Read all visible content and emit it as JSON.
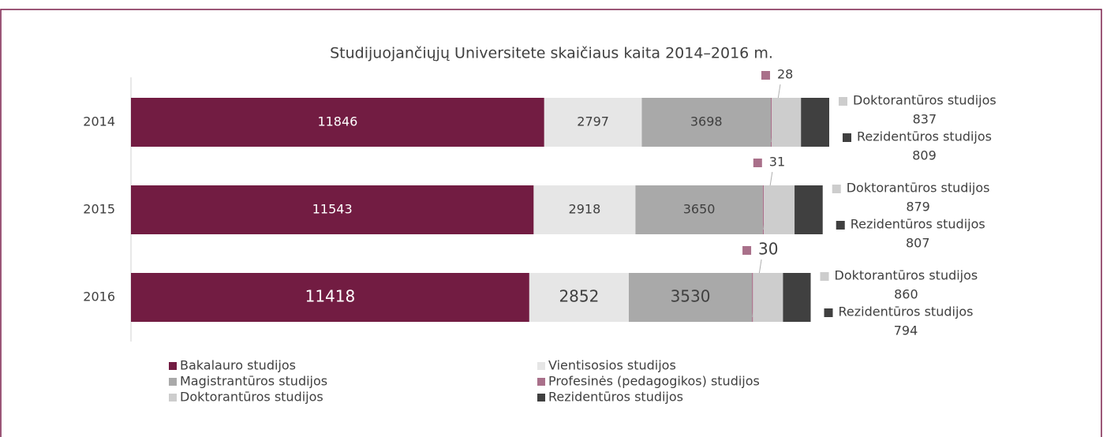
{
  "chart_data": {
    "type": "stacked-bar-horizontal",
    "title": "Studijuojančiųjų Universitete skaičiaus kaita 2014–2016 m.",
    "categories": [
      "2014",
      "2015",
      "2016"
    ],
    "series": [
      {
        "name": "Bakalauro studijos",
        "color": "#721c42",
        "values": [
          11846,
          11543,
          11418
        ]
      },
      {
        "name": "Vientisosios studijos",
        "color": "#e6e6e6",
        "values": [
          2797,
          2918,
          2852
        ]
      },
      {
        "name": "Magistrantūros studijos",
        "color": "#a9a9a9",
        "values": [
          3698,
          3650,
          3530
        ]
      },
      {
        "name": "Profesinės (pedagogikos) studijos",
        "color": "#a9708a",
        "values": [
          28,
          31,
          30
        ]
      },
      {
        "name": "Doktorantūros studijos",
        "color": "#cdcdcd",
        "values": [
          837,
          879,
          860
        ]
      },
      {
        "name": "Rezidentūros studijos",
        "color": "#404040",
        "values": [
          809,
          807,
          794
        ]
      }
    ]
  }
}
